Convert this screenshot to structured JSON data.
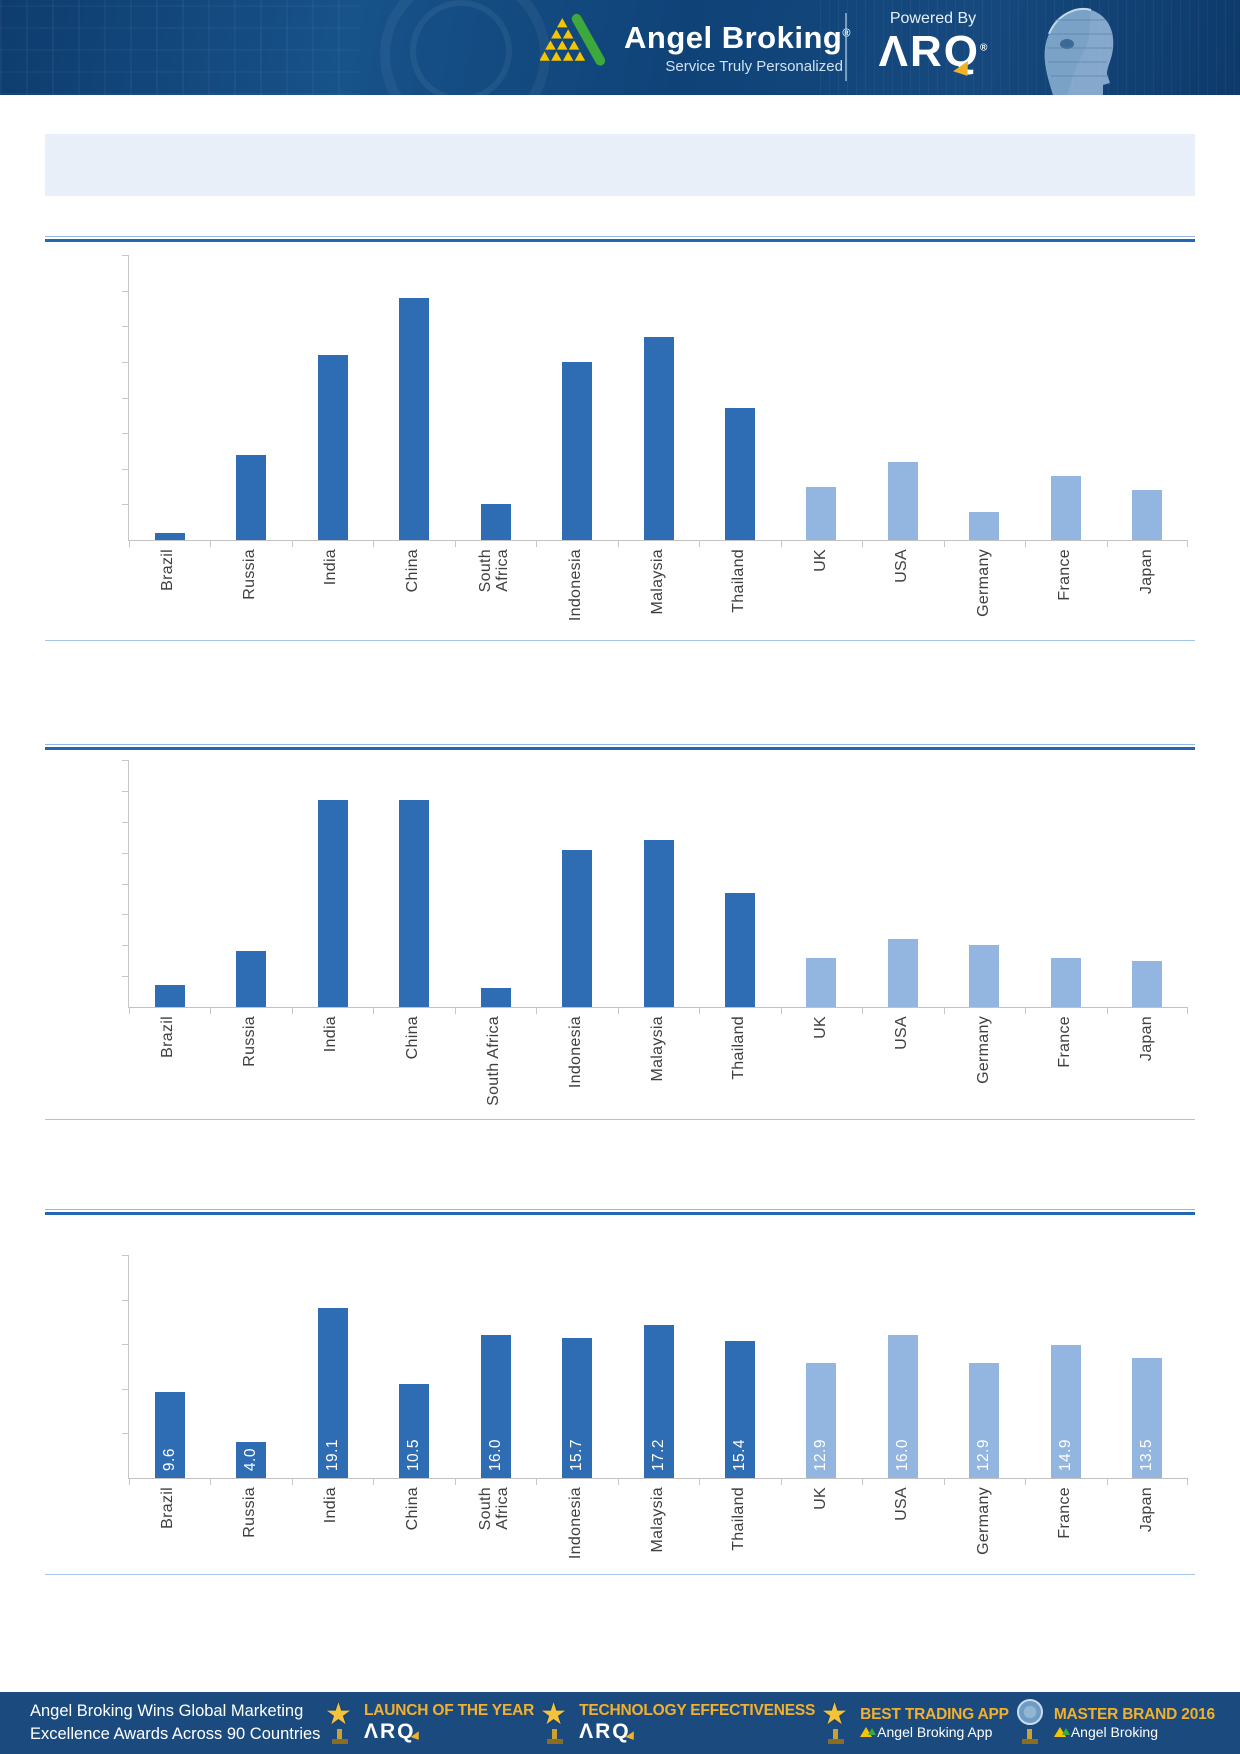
{
  "header": {
    "brand": "Angel Broking",
    "registered_mark": "®",
    "tagline": "Service Truly Personalized",
    "powered_by": "Powered By",
    "arq": "ΛRQ"
  },
  "banner": {
    "text": ""
  },
  "chart_data": [
    {
      "type": "bar",
      "title": "",
      "xlabel": "",
      "ylabel": "",
      "categories": [
        "Brazil",
        "Russia",
        "India",
        "China",
        "South Africa",
        "Indonesia",
        "Malaysia",
        "Thailand",
        "UK",
        "USA",
        "Germany",
        "France",
        "Japan"
      ],
      "categories_lines": [
        [
          "Brazil"
        ],
        [
          "Russia"
        ],
        [
          "India"
        ],
        [
          "China"
        ],
        [
          "South",
          "Africa"
        ],
        [
          "Indonesia"
        ],
        [
          "Malaysia"
        ],
        [
          "Thailand"
        ],
        [
          "UK"
        ],
        [
          "USA"
        ],
        [
          "Germany"
        ],
        [
          "France"
        ],
        [
          "Japan"
        ]
      ],
      "values": [
        0.2,
        2.4,
        5.2,
        6.8,
        1.0,
        5.0,
        5.7,
        3.7,
        1.5,
        2.2,
        0.8,
        1.8,
        1.4
      ],
      "values_estimated": true,
      "value_labels": null,
      "ylim": [
        0,
        8
      ],
      "yticks": 8,
      "grid": false,
      "legend": "none",
      "dark_count": 8,
      "bar_color_dark": "#2e6db4",
      "bar_color_light": "#92b6df"
    },
    {
      "type": "bar",
      "title": "",
      "xlabel": "",
      "ylabel": "",
      "categories": [
        "Brazil",
        "Russia",
        "India",
        "China",
        "South Africa",
        "Indonesia",
        "Malaysia",
        "Thailand",
        "UK",
        "USA",
        "Germany",
        "France",
        "Japan"
      ],
      "categories_lines": [
        [
          "Brazil"
        ],
        [
          "Russia"
        ],
        [
          "India"
        ],
        [
          "China"
        ],
        [
          "South Africa"
        ],
        [
          "Indonesia"
        ],
        [
          "Malaysia"
        ],
        [
          "Thailand"
        ],
        [
          "UK"
        ],
        [
          "USA"
        ],
        [
          "Germany"
        ],
        [
          "France"
        ],
        [
          "Japan"
        ]
      ],
      "values": [
        0.7,
        1.8,
        6.7,
        6.7,
        0.6,
        5.1,
        5.4,
        3.7,
        1.6,
        2.2,
        2.0,
        1.6,
        1.5
      ],
      "values_estimated": true,
      "value_labels": null,
      "ylim": [
        0,
        8
      ],
      "yticks": 8,
      "grid": false,
      "legend": "none",
      "dark_count": 8,
      "bar_color_dark": "#2e6db4",
      "bar_color_light": "#92b6df"
    },
    {
      "type": "bar",
      "title": "",
      "xlabel": "",
      "ylabel": "",
      "categories": [
        "Brazil",
        "Russia",
        "India",
        "China",
        "South Africa",
        "Indonesia",
        "Malaysia",
        "Thailand",
        "UK",
        "USA",
        "Germany",
        "France",
        "Japan"
      ],
      "categories_lines": [
        [
          "Brazil"
        ],
        [
          "Russia"
        ],
        [
          "India"
        ],
        [
          "China"
        ],
        [
          "South",
          "Africa"
        ],
        [
          "Indonesia"
        ],
        [
          "Malaysia"
        ],
        [
          "Thailand"
        ],
        [
          "UK"
        ],
        [
          "USA"
        ],
        [
          "Germany"
        ],
        [
          "France"
        ],
        [
          "Japan"
        ]
      ],
      "values": [
        9.6,
        4.0,
        19.1,
        10.5,
        16.0,
        15.7,
        17.2,
        15.4,
        12.9,
        16.0,
        12.9,
        14.9,
        13.5
      ],
      "values_estimated": false,
      "value_labels": [
        "9.6",
        "4.0",
        "19.1",
        "10.5",
        "16.0",
        "15.7",
        "17.2",
        "15.4",
        "12.9",
        "16.0",
        "12.9",
        "14.9",
        "13.5"
      ],
      "ylim": [
        0,
        25
      ],
      "yticks": 5,
      "grid": false,
      "legend": "none",
      "dark_count": 8,
      "bar_color_dark": "#2e6db4",
      "bar_color_light": "#92b6df"
    }
  ],
  "footer": {
    "claim_line1": "Angel Broking Wins Global Marketing",
    "claim_line2": "Excellence Awards Across 90 Countries",
    "awards": [
      {
        "title": "LAUNCH OF THE YEAR",
        "subtitle": "ΛRQ",
        "subtitle_style": "arq",
        "icon": "trophy-star"
      },
      {
        "title": "TECHNOLOGY EFFECTIVENESS",
        "subtitle": "ΛRQ",
        "subtitle_style": "arq",
        "icon": "trophy-star"
      },
      {
        "title": "BEST TRADING APP",
        "subtitle": "Angel Broking App",
        "subtitle_style": "brand",
        "icon": "trophy-star"
      },
      {
        "title": "MASTER BRAND 2016",
        "subtitle": "Angel Broking",
        "subtitle_style": "brand",
        "icon": "trophy-globe"
      }
    ]
  },
  "colors": {
    "header_bg": "#12437a",
    "footer_bg": "#1b4b7e",
    "banner_bg": "#e9eff8",
    "rule_thick": "#2367b1",
    "rule_thin": "#a5c6e8",
    "bar_dark": "#2e6db4",
    "bar_light": "#92b6df",
    "gold": "#f3b02c",
    "logo_yellow": "#f7c500",
    "logo_green": "#3da93c",
    "axis_gray": "#c6c6c6",
    "label_text": "#3f3f3f"
  }
}
